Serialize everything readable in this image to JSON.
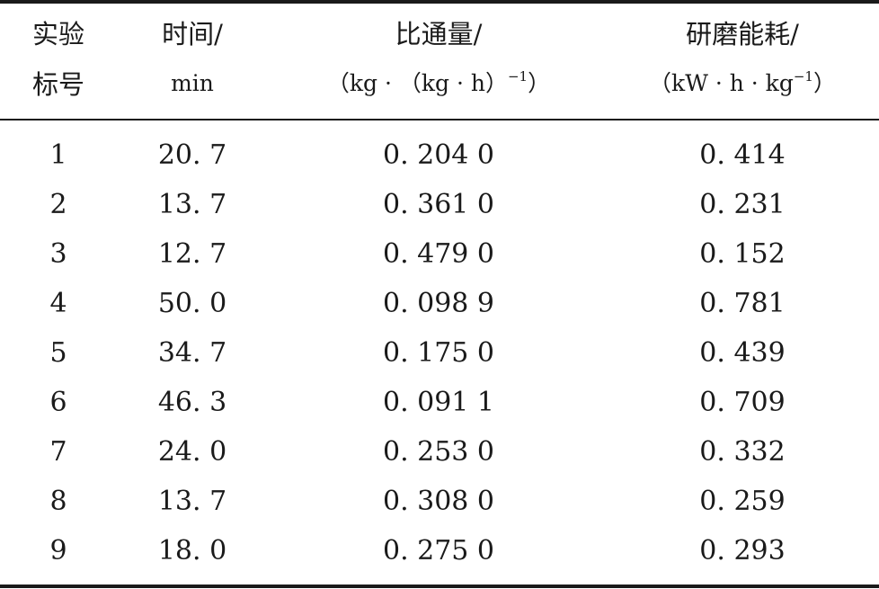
{
  "table": {
    "headers": [
      {
        "line1": "实验",
        "line2": "标号"
      },
      {
        "line1": "时间/",
        "line2": "min"
      },
      {
        "line1": "比通量/",
        "line2_pre": "（kg · （kg · h）",
        "line2_sup": "−1",
        "line2_post": "）"
      },
      {
        "line1": "研磨能耗/",
        "line2_pre": "（kW · h · kg",
        "line2_sup": "−1",
        "line2_post": "）"
      }
    ],
    "rows": [
      [
        "1",
        "20. 7",
        "0. 204 0",
        "0. 414"
      ],
      [
        "2",
        "13. 7",
        "0. 361 0",
        "0. 231"
      ],
      [
        "3",
        "12. 7",
        "0. 479 0",
        "0. 152"
      ],
      [
        "4",
        "50. 0",
        "0. 098 9",
        "0. 781"
      ],
      [
        "5",
        "34. 7",
        "0. 175 0",
        "0. 439"
      ],
      [
        "6",
        "46. 3",
        "0. 091 1",
        "0. 709"
      ],
      [
        "7",
        "24. 0",
        "0. 253 0",
        "0. 332"
      ],
      [
        "8",
        "13. 7",
        "0. 308 0",
        "0. 259"
      ],
      [
        "9",
        "18. 0",
        "0. 275 0",
        "0. 293"
      ]
    ]
  }
}
